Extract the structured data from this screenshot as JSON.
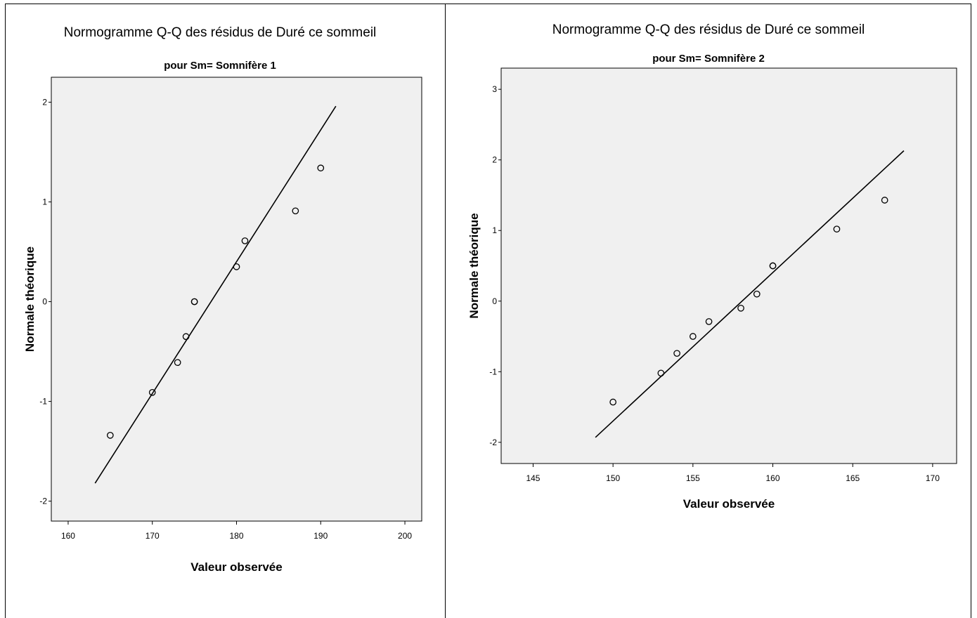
{
  "chart_data": [
    {
      "type": "scatter",
      "title": "Normogramme Q-Q des résidus de Duré ce sommeil",
      "subtitle": "pour Sm= Somnifère 1",
      "xlabel": "Valeur observée",
      "ylabel": "Normale théorique",
      "xlim": [
        158,
        202
      ],
      "ylim": [
        -2.2,
        2.25
      ],
      "xticks": [
        160,
        170,
        180,
        190,
        200
      ],
      "yticks": [
        -2,
        -1,
        0,
        1,
        2
      ],
      "grid": false,
      "points": {
        "x": [
          165,
          170,
          173,
          174,
          175,
          175,
          180,
          181,
          187,
          190
        ],
        "y": [
          -1.34,
          -0.91,
          -0.61,
          -0.35,
          0.0,
          0.0,
          0.35,
          0.61,
          0.91,
          1.34
        ]
      },
      "reference_line": {
        "x": [
          163.2,
          191.8
        ],
        "y": [
          -1.82,
          1.96
        ]
      },
      "colors": {
        "plot_bg": "#f0f0f0",
        "marker": "#000000",
        "line": "#000000"
      }
    },
    {
      "type": "scatter",
      "title": "Normogramme Q-Q des résidus de Duré ce sommeil",
      "subtitle": "pour Sm= Somnifère 2",
      "xlabel": "Valeur observée",
      "ylabel": "Normale théorique",
      "xlim": [
        143,
        171.5
      ],
      "ylim": [
        -2.3,
        3.3
      ],
      "xticks": [
        145,
        150,
        155,
        160,
        165,
        170
      ],
      "yticks": [
        -2,
        -1,
        0,
        1,
        2,
        3
      ],
      "grid": false,
      "points": {
        "x": [
          150,
          153,
          154,
          155,
          156,
          158,
          159,
          160,
          160,
          164,
          167
        ],
        "y": [
          -1.43,
          -1.02,
          -0.74,
          -0.5,
          -0.29,
          -0.1,
          0.1,
          0.5,
          0.5,
          1.02,
          1.43
        ]
      },
      "reference_line": {
        "x": [
          148.9,
          168.2
        ],
        "y": [
          -1.93,
          2.13
        ]
      },
      "colors": {
        "plot_bg": "#f0f0f0",
        "marker": "#000000",
        "line": "#000000"
      }
    }
  ]
}
